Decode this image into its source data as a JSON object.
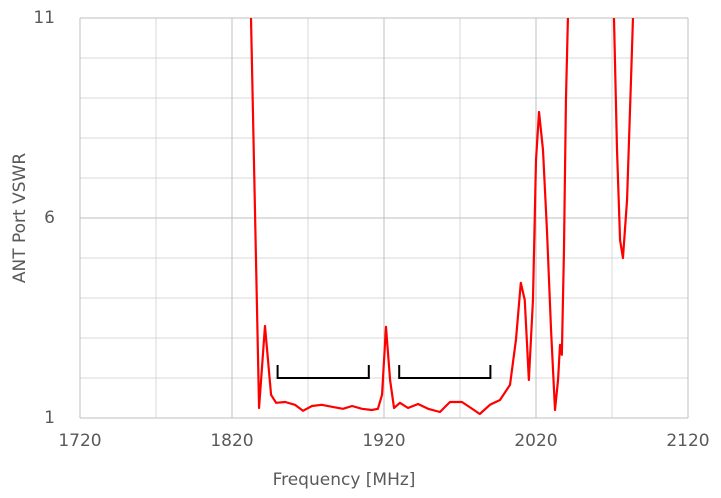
{
  "chart_data": {
    "type": "line",
    "x_label": "Frequency [MHz]",
    "y_label": "ANT Port VSWR",
    "xlim": [
      1720,
      2120
    ],
    "ylim": [
      1,
      11
    ],
    "xticks": [
      1720,
      1820,
      1920,
      2020,
      2120
    ],
    "yticks": [
      1,
      6,
      11
    ],
    "xgrid": [
      1770,
      1870,
      1970,
      2070
    ],
    "ygrid": [
      2,
      3,
      4,
      5,
      7,
      8,
      9,
      10
    ],
    "grid": true,
    "series": [
      {
        "color": "#ff0000",
        "x": [
          1832.5,
          1837.8,
          1841.7,
          1845.7,
          1849,
          1855,
          1861.4,
          1866.7,
          1872.6,
          1879,
          1885.8,
          1893,
          1899,
          1905.5,
          1912,
          1916,
          1918.7,
          1921.3,
          1924,
          1926.6,
          1930.5,
          1935.8,
          1942.4,
          1949,
          1956.8,
          1963.4,
          1971.3,
          1979.2,
          1983,
          1989.7,
          1996.3,
          2002.9,
          2006.8,
          2010,
          2012.6,
          2015.3,
          2018,
          2020,
          2022,
          2024.6,
          2027.2,
          2029.9,
          2032.5,
          2034.5,
          2035.8,
          2037,
          2038.4,
          2039.7,
          2041,
          2056,
          2071.3,
          2073.3,
          2075.3,
          2077.2,
          2079.9,
          2082.5,
          2083.8
        ],
        "values": [
          11,
          1.25,
          3.3,
          1.58,
          1.38,
          1.4,
          1.33,
          1.18,
          1.3,
          1.33,
          1.28,
          1.23,
          1.3,
          1.23,
          1.2,
          1.23,
          1.58,
          3.28,
          1.95,
          1.25,
          1.38,
          1.25,
          1.35,
          1.23,
          1.15,
          1.4,
          1.4,
          1.2,
          1.1,
          1.33,
          1.45,
          1.83,
          2.95,
          4.38,
          3.95,
          1.95,
          3.95,
          7.45,
          8.65,
          7.7,
          5.7,
          3.2,
          1.2,
          1.95,
          2.83,
          2.58,
          5.2,
          8.95,
          11,
          null,
          11,
          7.7,
          5.45,
          5.0,
          6.45,
          9.45,
          11
        ]
      }
    ],
    "brackets": [
      {
        "x": [
          1850,
          1910
        ],
        "y": 2
      },
      {
        "x": [
          1930,
          1990
        ],
        "y": 2
      }
    ]
  }
}
